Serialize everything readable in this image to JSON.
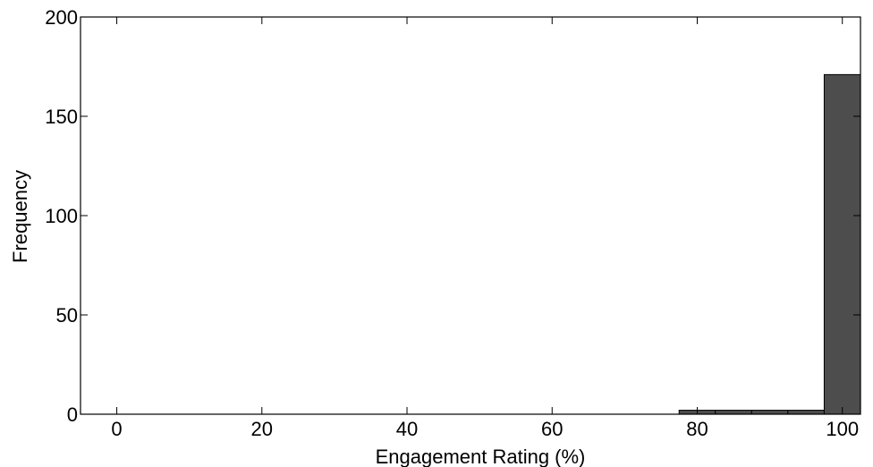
{
  "chart_data": {
    "type": "bar",
    "title": "",
    "xlabel": "Engagement Rating (%)",
    "ylabel": "Frequency",
    "xlim": [
      -5,
      102.5
    ],
    "ylim": [
      0,
      200
    ],
    "xticks": [
      0,
      20,
      40,
      60,
      80,
      100
    ],
    "yticks": [
      0,
      50,
      100,
      150,
      200
    ],
    "grid": false,
    "bar_color": "#4d4d4d",
    "bins": [
      {
        "start": 77.5,
        "end": 82.5,
        "value": 2
      },
      {
        "start": 82.5,
        "end": 87.5,
        "value": 2
      },
      {
        "start": 87.5,
        "end": 92.5,
        "value": 2
      },
      {
        "start": 92.5,
        "end": 97.5,
        "value": 2
      },
      {
        "start": 97.5,
        "end": 102.5,
        "value": 171
      }
    ]
  }
}
